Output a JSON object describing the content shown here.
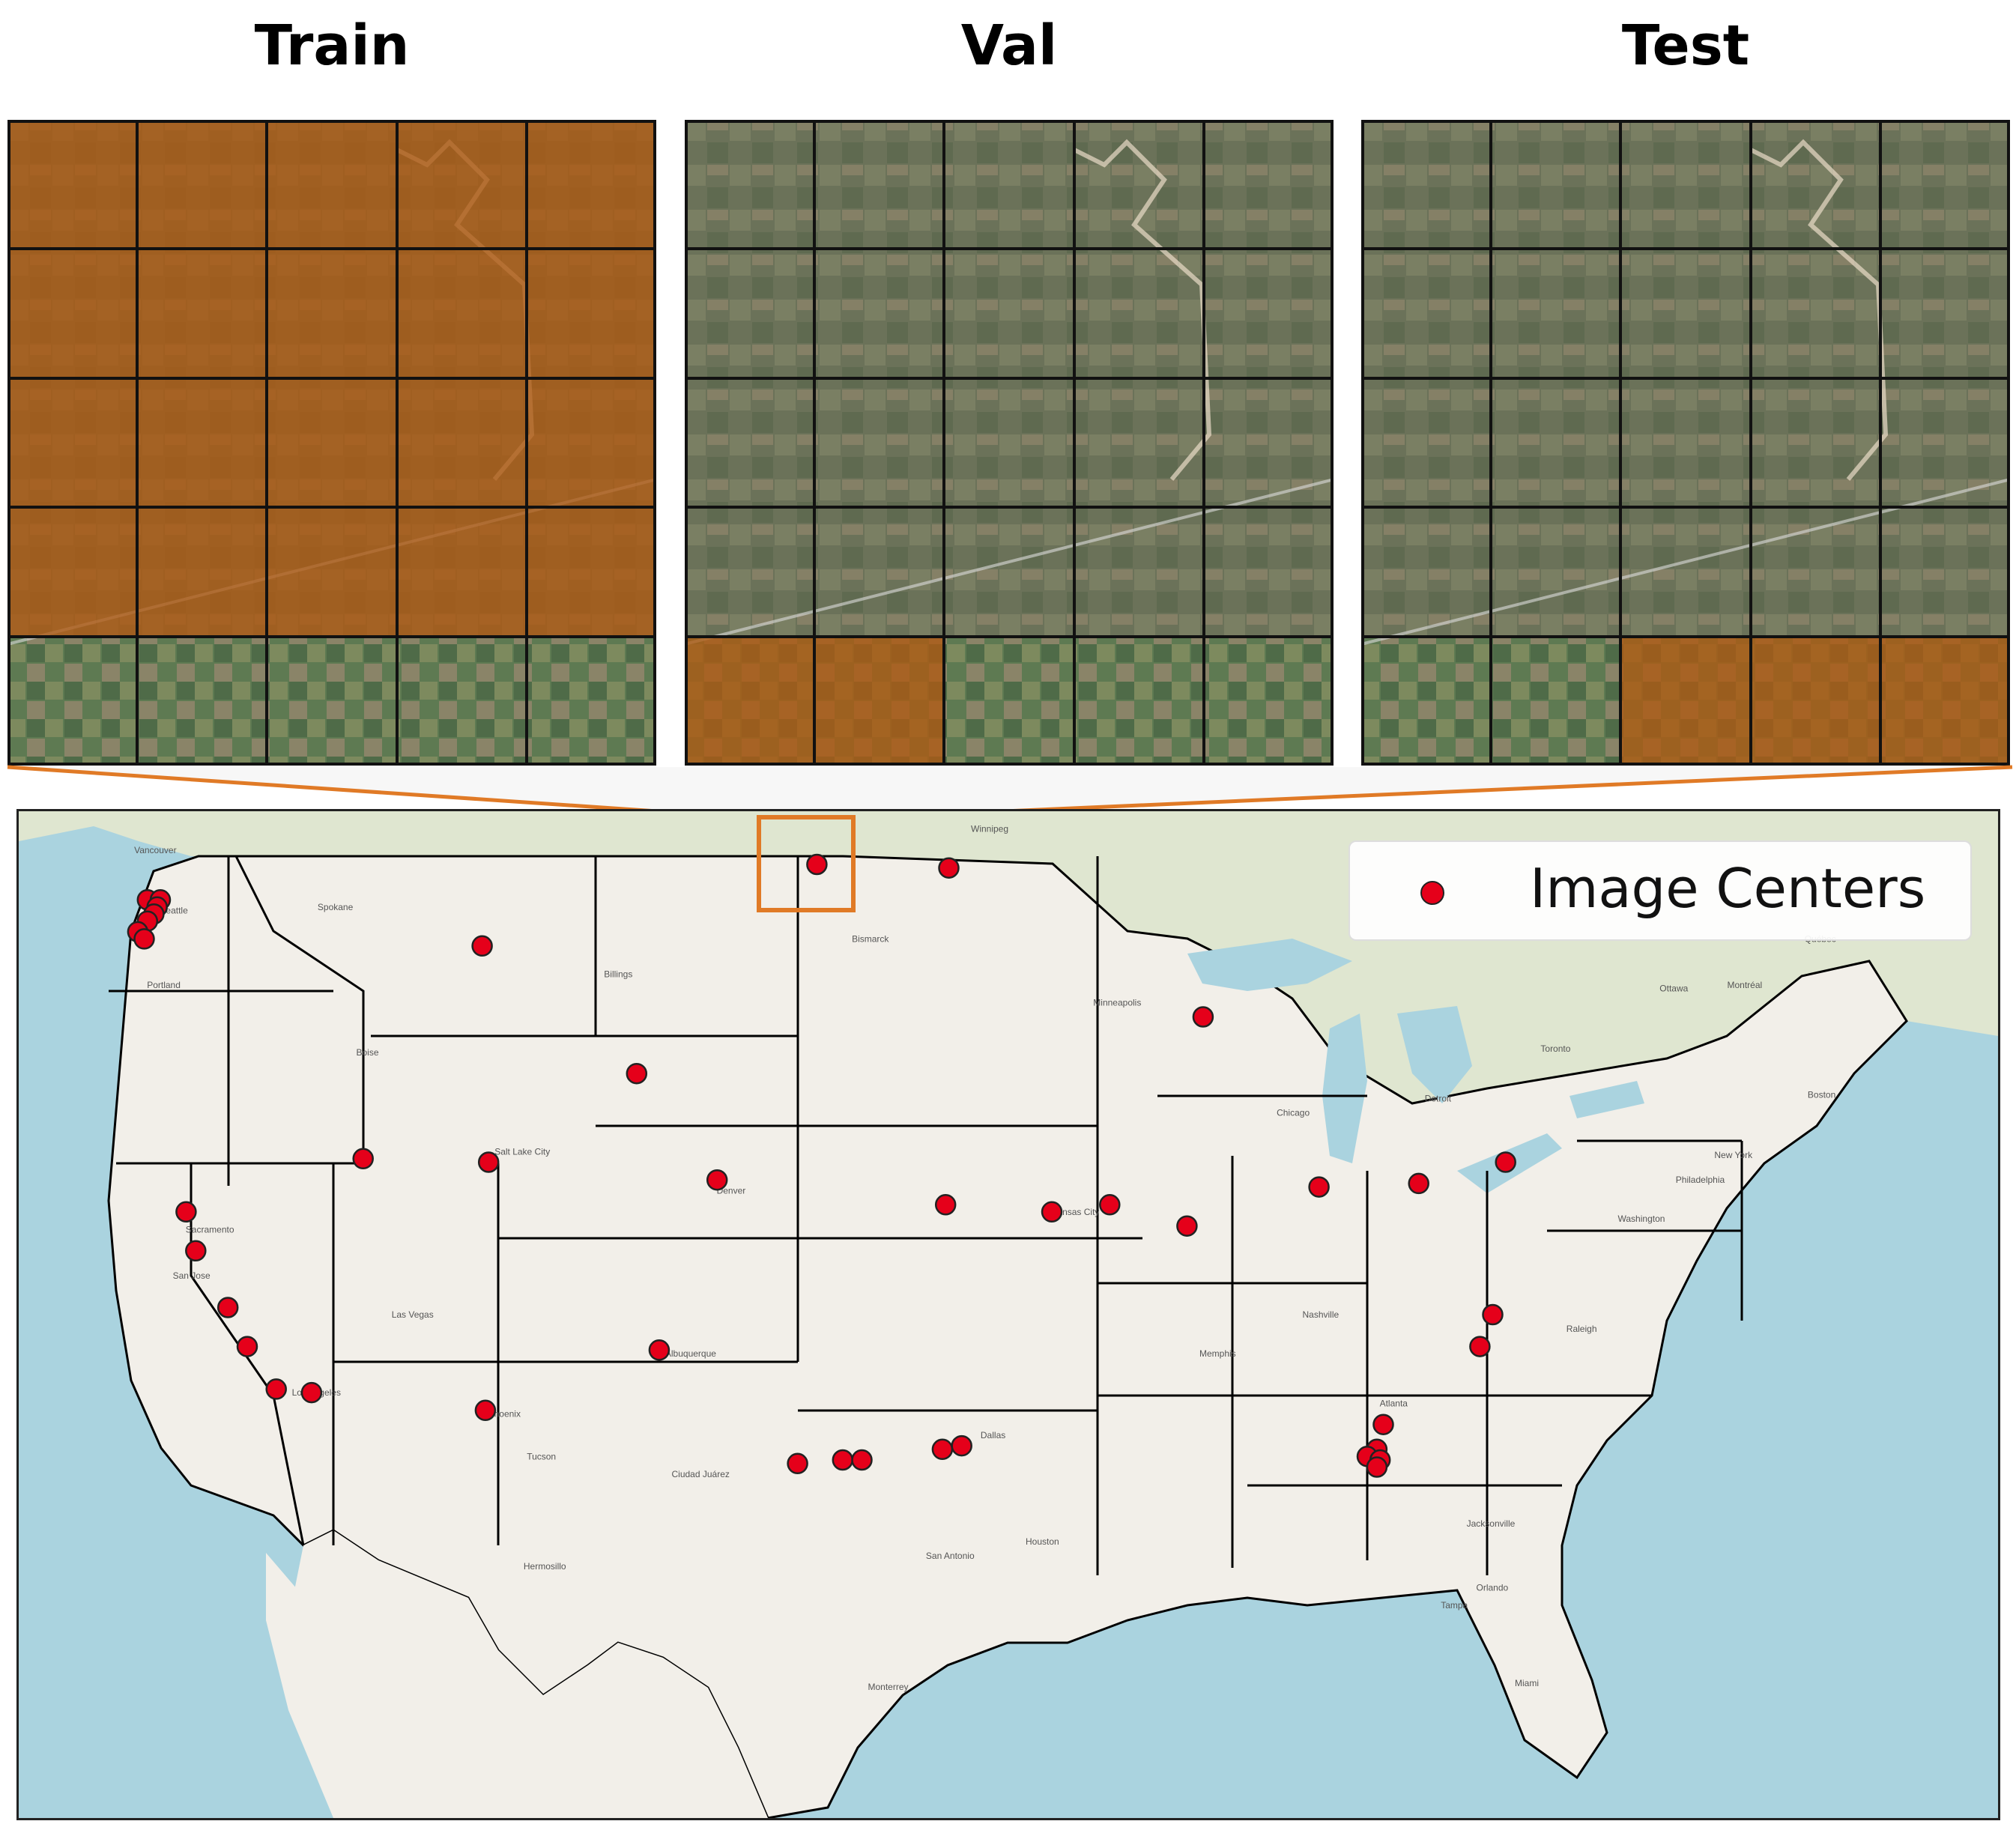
{
  "panels": [
    {
      "title": "Train",
      "highlight": "rows 1-4 (all columns)"
    },
    {
      "title": "Val",
      "highlight": "row 5, columns 1-2"
    },
    {
      "title": "Test",
      "highlight": "row 5, columns 3-5"
    }
  ],
  "legend": {
    "label": "Image Centers",
    "marker_color": "#e5001a"
  },
  "colors": {
    "highlight": "#b05a12",
    "connector": "#e07a26",
    "water": "#aad3df",
    "land": "#f2efe9",
    "borders": "#000000",
    "points": "#e5001a"
  },
  "map": {
    "cities": [
      "Vancouver",
      "Seattle",
      "Portland",
      "Sacramento",
      "San Jose",
      "Los Angeles",
      "Las Vegas",
      "Phoenix",
      "Salt Lake City",
      "Boise",
      "Denver",
      "Albuquerque",
      "Dallas",
      "Houston",
      "San Antonio",
      "Kansas City",
      "Minneapolis",
      "Chicago",
      "Detroit",
      "Toronto",
      "Ottawa",
      "Montréal",
      "Québec",
      "Boston",
      "New York",
      "Philadelphia",
      "Washington",
      "Raleigh",
      "Atlanta",
      "Jacksonville",
      "Tampa",
      "Orlando",
      "Miami",
      "Nashville",
      "Memphis",
      "Winnipeg",
      "Bismarck",
      "Billings",
      "Spokane",
      "Tucson",
      "Ciudad Juárez",
      "Monterrey",
      "Hermosillo"
    ],
    "image_centers": [
      {
        "lon": -101.7,
        "lat": 48.9
      },
      {
        "lon": -97.6,
        "lat": 48.8
      },
      {
        "lon": -122.5,
        "lat": 47.9
      },
      {
        "lon": -122.1,
        "lat": 47.9
      },
      {
        "lon": -122.2,
        "lat": 47.7
      },
      {
        "lon": -122.3,
        "lat": 47.5
      },
      {
        "lon": -122.5,
        "lat": 47.3
      },
      {
        "lon": -122.8,
        "lat": 47.0
      },
      {
        "lon": -122.6,
        "lat": 46.8
      },
      {
        "lon": -112.1,
        "lat": 46.6
      },
      {
        "lon": -107.3,
        "lat": 43.0
      },
      {
        "lon": -115.8,
        "lat": 40.6
      },
      {
        "lon": -111.9,
        "lat": 40.5
      },
      {
        "lon": -104.8,
        "lat": 40.0
      },
      {
        "lon": -121.3,
        "lat": 39.1
      },
      {
        "lon": -121.0,
        "lat": 38.0
      },
      {
        "lon": -120.0,
        "lat": 36.4
      },
      {
        "lon": -119.4,
        "lat": 35.3
      },
      {
        "lon": -118.5,
        "lat": 34.1
      },
      {
        "lon": -117.4,
        "lat": 34.0
      },
      {
        "lon": -112.0,
        "lat": 33.5
      },
      {
        "lon": -106.6,
        "lat": 35.2
      },
      {
        "lon": -89.7,
        "lat": 44.6
      },
      {
        "lon": -86.1,
        "lat": 39.8
      },
      {
        "lon": -83.0,
        "lat": 39.9
      },
      {
        "lon": -80.3,
        "lat": 40.5
      },
      {
        "lon": -90.2,
        "lat": 38.7
      },
      {
        "lon": -92.6,
        "lat": 39.3
      },
      {
        "lon": -94.4,
        "lat": 39.1
      },
      {
        "lon": -97.7,
        "lat": 39.3
      },
      {
        "lon": -80.7,
        "lat": 36.2
      },
      {
        "lon": -81.1,
        "lat": 35.3
      },
      {
        "lon": -84.1,
        "lat": 33.1
      },
      {
        "lon": -84.3,
        "lat": 32.4
      },
      {
        "lon": -84.6,
        "lat": 32.2
      },
      {
        "lon": -84.2,
        "lat": 32.1
      },
      {
        "lon": -84.3,
        "lat": 31.9
      },
      {
        "lon": -102.3,
        "lat": 32.0
      },
      {
        "lon": -100.9,
        "lat": 32.1
      },
      {
        "lon": -100.3,
        "lat": 32.1
      },
      {
        "lon": -97.8,
        "lat": 32.4
      },
      {
        "lon": -97.2,
        "lat": 32.5
      }
    ]
  }
}
